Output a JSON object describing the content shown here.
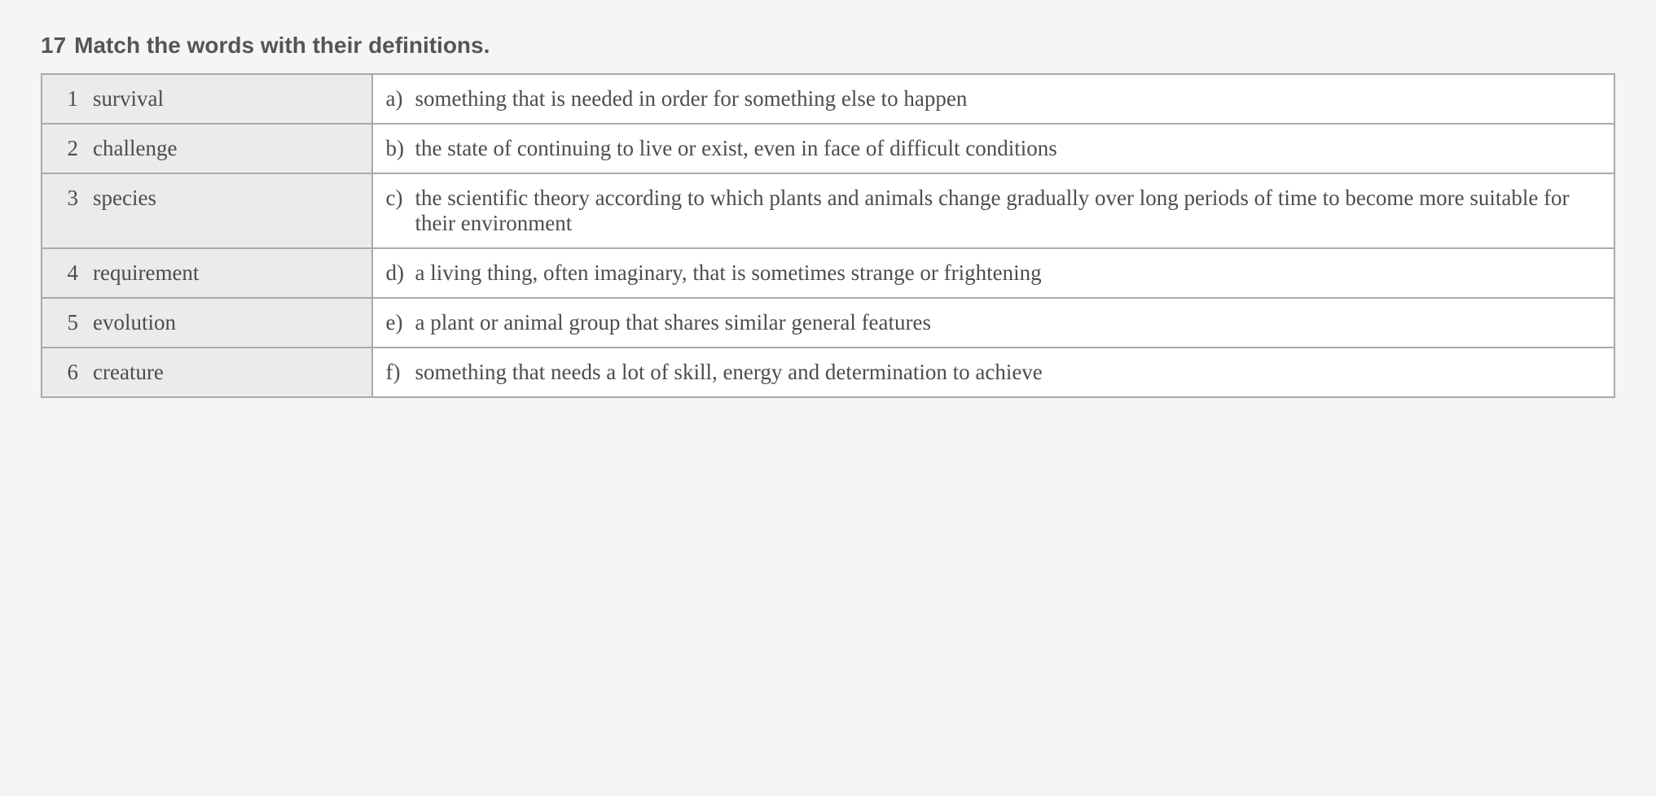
{
  "exercise_number": "17",
  "exercise_title": "Match the words with their definitions.",
  "rows": [
    {
      "num": "1",
      "word": "survival",
      "letter": "a)",
      "definition": "something that is needed in order for something else to happen"
    },
    {
      "num": "2",
      "word": "challenge",
      "letter": "b)",
      "definition": "the state of continuing to live or exist, even in face of difficult conditions"
    },
    {
      "num": "3",
      "word": "species",
      "letter": "c)",
      "definition": "the scientific theory according to which plants and animals change gradually over long periods of time to become more suitable for their environment"
    },
    {
      "num": "4",
      "word": "requirement",
      "letter": "d)",
      "definition": "a living thing, often imaginary, that is sometimes strange or frightening"
    },
    {
      "num": "5",
      "word": "evolution",
      "letter": "e)",
      "definition": "a plant or animal group that shares similar general features"
    },
    {
      "num": "6",
      "word": "creature",
      "letter": "f)",
      "definition": "something that needs a lot of skill, energy and determination to achieve"
    }
  ],
  "styling": {
    "background_color": "#f5f5f3",
    "table_border_color": "#aaaaaa",
    "word_cell_bg": "#ebebe9",
    "def_cell_bg": "#ffffff",
    "text_color": "#4d4d4d",
    "title_color": "#555555",
    "title_fontsize": 28,
    "body_fontsize": 27,
    "title_font": "sans-serif",
    "body_font": "serif"
  }
}
